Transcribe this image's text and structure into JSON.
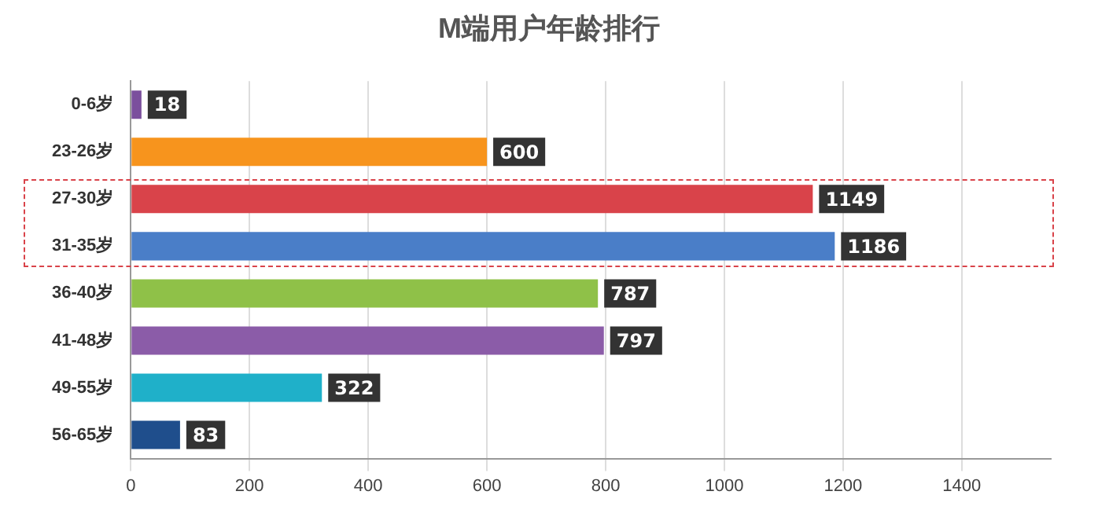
{
  "chart_data": {
    "type": "bar",
    "orientation": "horizontal",
    "title": "M端用户年龄排行",
    "categories": [
      "0-6岁",
      "23-26岁",
      "27-30岁",
      "31-35岁",
      "36-40岁",
      "41-48岁",
      "49-55岁",
      "56-65岁"
    ],
    "values": [
      18,
      600,
      1149,
      1186,
      787,
      797,
      322,
      83
    ],
    "colors": [
      "#7b4f9d",
      "#f7941d",
      "#d9434a",
      "#4a7ec8",
      "#8fc148",
      "#8b5ca8",
      "#1fb0c9",
      "#1f4e8c"
    ],
    "xlim": [
      0,
      1550
    ],
    "xticks": [
      0,
      200,
      400,
      600,
      800,
      1000,
      1200,
      1400
    ],
    "grid": "x",
    "data_labels": true
  }
}
